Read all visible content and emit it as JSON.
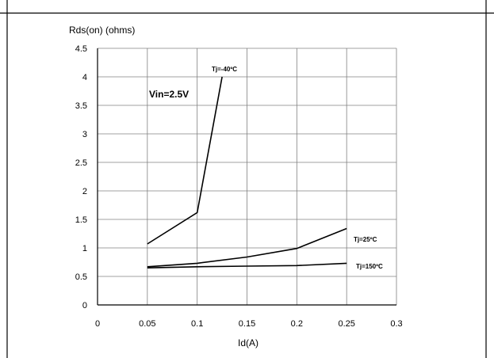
{
  "chart_data": {
    "type": "line",
    "title": "",
    "xlabel": "Id(A)",
    "ylabel": "Rds(on) (ohms)",
    "xlim": [
      0,
      0.3
    ],
    "ylim": [
      0,
      4.5
    ],
    "x_ticks": [
      0,
      0.05,
      0.1,
      0.15,
      0.2,
      0.25,
      0.3
    ],
    "y_ticks": [
      0,
      0.5,
      1,
      1.5,
      2,
      2.5,
      3,
      3.5,
      4,
      4.5
    ],
    "grid": true,
    "annotation": "Vin=2.5V",
    "series": [
      {
        "name": "Tj=-40ºC",
        "x": [
          0.05,
          0.1,
          0.125
        ],
        "y": [
          1.07,
          1.62,
          4.0
        ]
      },
      {
        "name": "Tj=25ºC",
        "x": [
          0.05,
          0.1,
          0.15,
          0.2,
          0.25
        ],
        "y": [
          0.67,
          0.73,
          0.84,
          0.99,
          1.34
        ]
      },
      {
        "name": "Tj=150ºC",
        "x": [
          0.05,
          0.1,
          0.15,
          0.2,
          0.25
        ],
        "y": [
          0.65,
          0.67,
          0.68,
          0.69,
          0.73
        ]
      }
    ]
  }
}
